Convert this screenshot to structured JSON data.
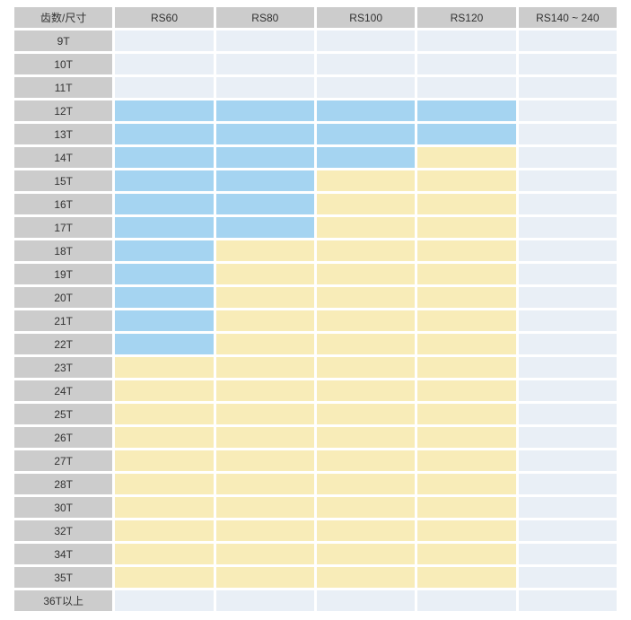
{
  "colors": {
    "header_bg": "#cccccc",
    "row_label_bg": "#cccccc",
    "cell_default": "#e9eff6",
    "cell_blue": "#a5d4f1",
    "cell_yellow": "#f8ecb8",
    "text": "#333333",
    "gap": "#ffffff"
  },
  "chart_data": {
    "type": "heatmap",
    "title": "",
    "corner_label": "齿数/尺寸",
    "columns": [
      "RS60",
      "RS80",
      "RS100",
      "RS120",
      "RS140 ~ 240"
    ],
    "rows": [
      "9T",
      "10T",
      "11T",
      "12T",
      "13T",
      "14T",
      "15T",
      "16T",
      "17T",
      "18T",
      "19T",
      "20T",
      "21T",
      "22T",
      "23T",
      "24T",
      "25T",
      "26T",
      "27T",
      "28T",
      "30T",
      "32T",
      "34T",
      "35T",
      "36T以上"
    ],
    "cell_states": [
      [
        "default",
        "default",
        "default",
        "default",
        "default"
      ],
      [
        "default",
        "default",
        "default",
        "default",
        "default"
      ],
      [
        "default",
        "default",
        "default",
        "default",
        "default"
      ],
      [
        "blue",
        "blue",
        "blue",
        "blue",
        "default"
      ],
      [
        "blue",
        "blue",
        "blue",
        "blue",
        "default"
      ],
      [
        "blue",
        "blue",
        "blue",
        "yellow",
        "default"
      ],
      [
        "blue",
        "blue",
        "yellow",
        "yellow",
        "default"
      ],
      [
        "blue",
        "blue",
        "yellow",
        "yellow",
        "default"
      ],
      [
        "blue",
        "blue",
        "yellow",
        "yellow",
        "default"
      ],
      [
        "blue",
        "yellow",
        "yellow",
        "yellow",
        "default"
      ],
      [
        "blue",
        "yellow",
        "yellow",
        "yellow",
        "default"
      ],
      [
        "blue",
        "yellow",
        "yellow",
        "yellow",
        "default"
      ],
      [
        "blue",
        "yellow",
        "yellow",
        "yellow",
        "default"
      ],
      [
        "blue",
        "yellow",
        "yellow",
        "yellow",
        "default"
      ],
      [
        "yellow",
        "yellow",
        "yellow",
        "yellow",
        "default"
      ],
      [
        "yellow",
        "yellow",
        "yellow",
        "yellow",
        "default"
      ],
      [
        "yellow",
        "yellow",
        "yellow",
        "yellow",
        "default"
      ],
      [
        "yellow",
        "yellow",
        "yellow",
        "yellow",
        "default"
      ],
      [
        "yellow",
        "yellow",
        "yellow",
        "yellow",
        "default"
      ],
      [
        "yellow",
        "yellow",
        "yellow",
        "yellow",
        "default"
      ],
      [
        "yellow",
        "yellow",
        "yellow",
        "yellow",
        "default"
      ],
      [
        "yellow",
        "yellow",
        "yellow",
        "yellow",
        "default"
      ],
      [
        "yellow",
        "yellow",
        "yellow",
        "yellow",
        "default"
      ],
      [
        "yellow",
        "yellow",
        "yellow",
        "yellow",
        "default"
      ],
      [
        "default",
        "default",
        "default",
        "default",
        "default"
      ]
    ]
  }
}
